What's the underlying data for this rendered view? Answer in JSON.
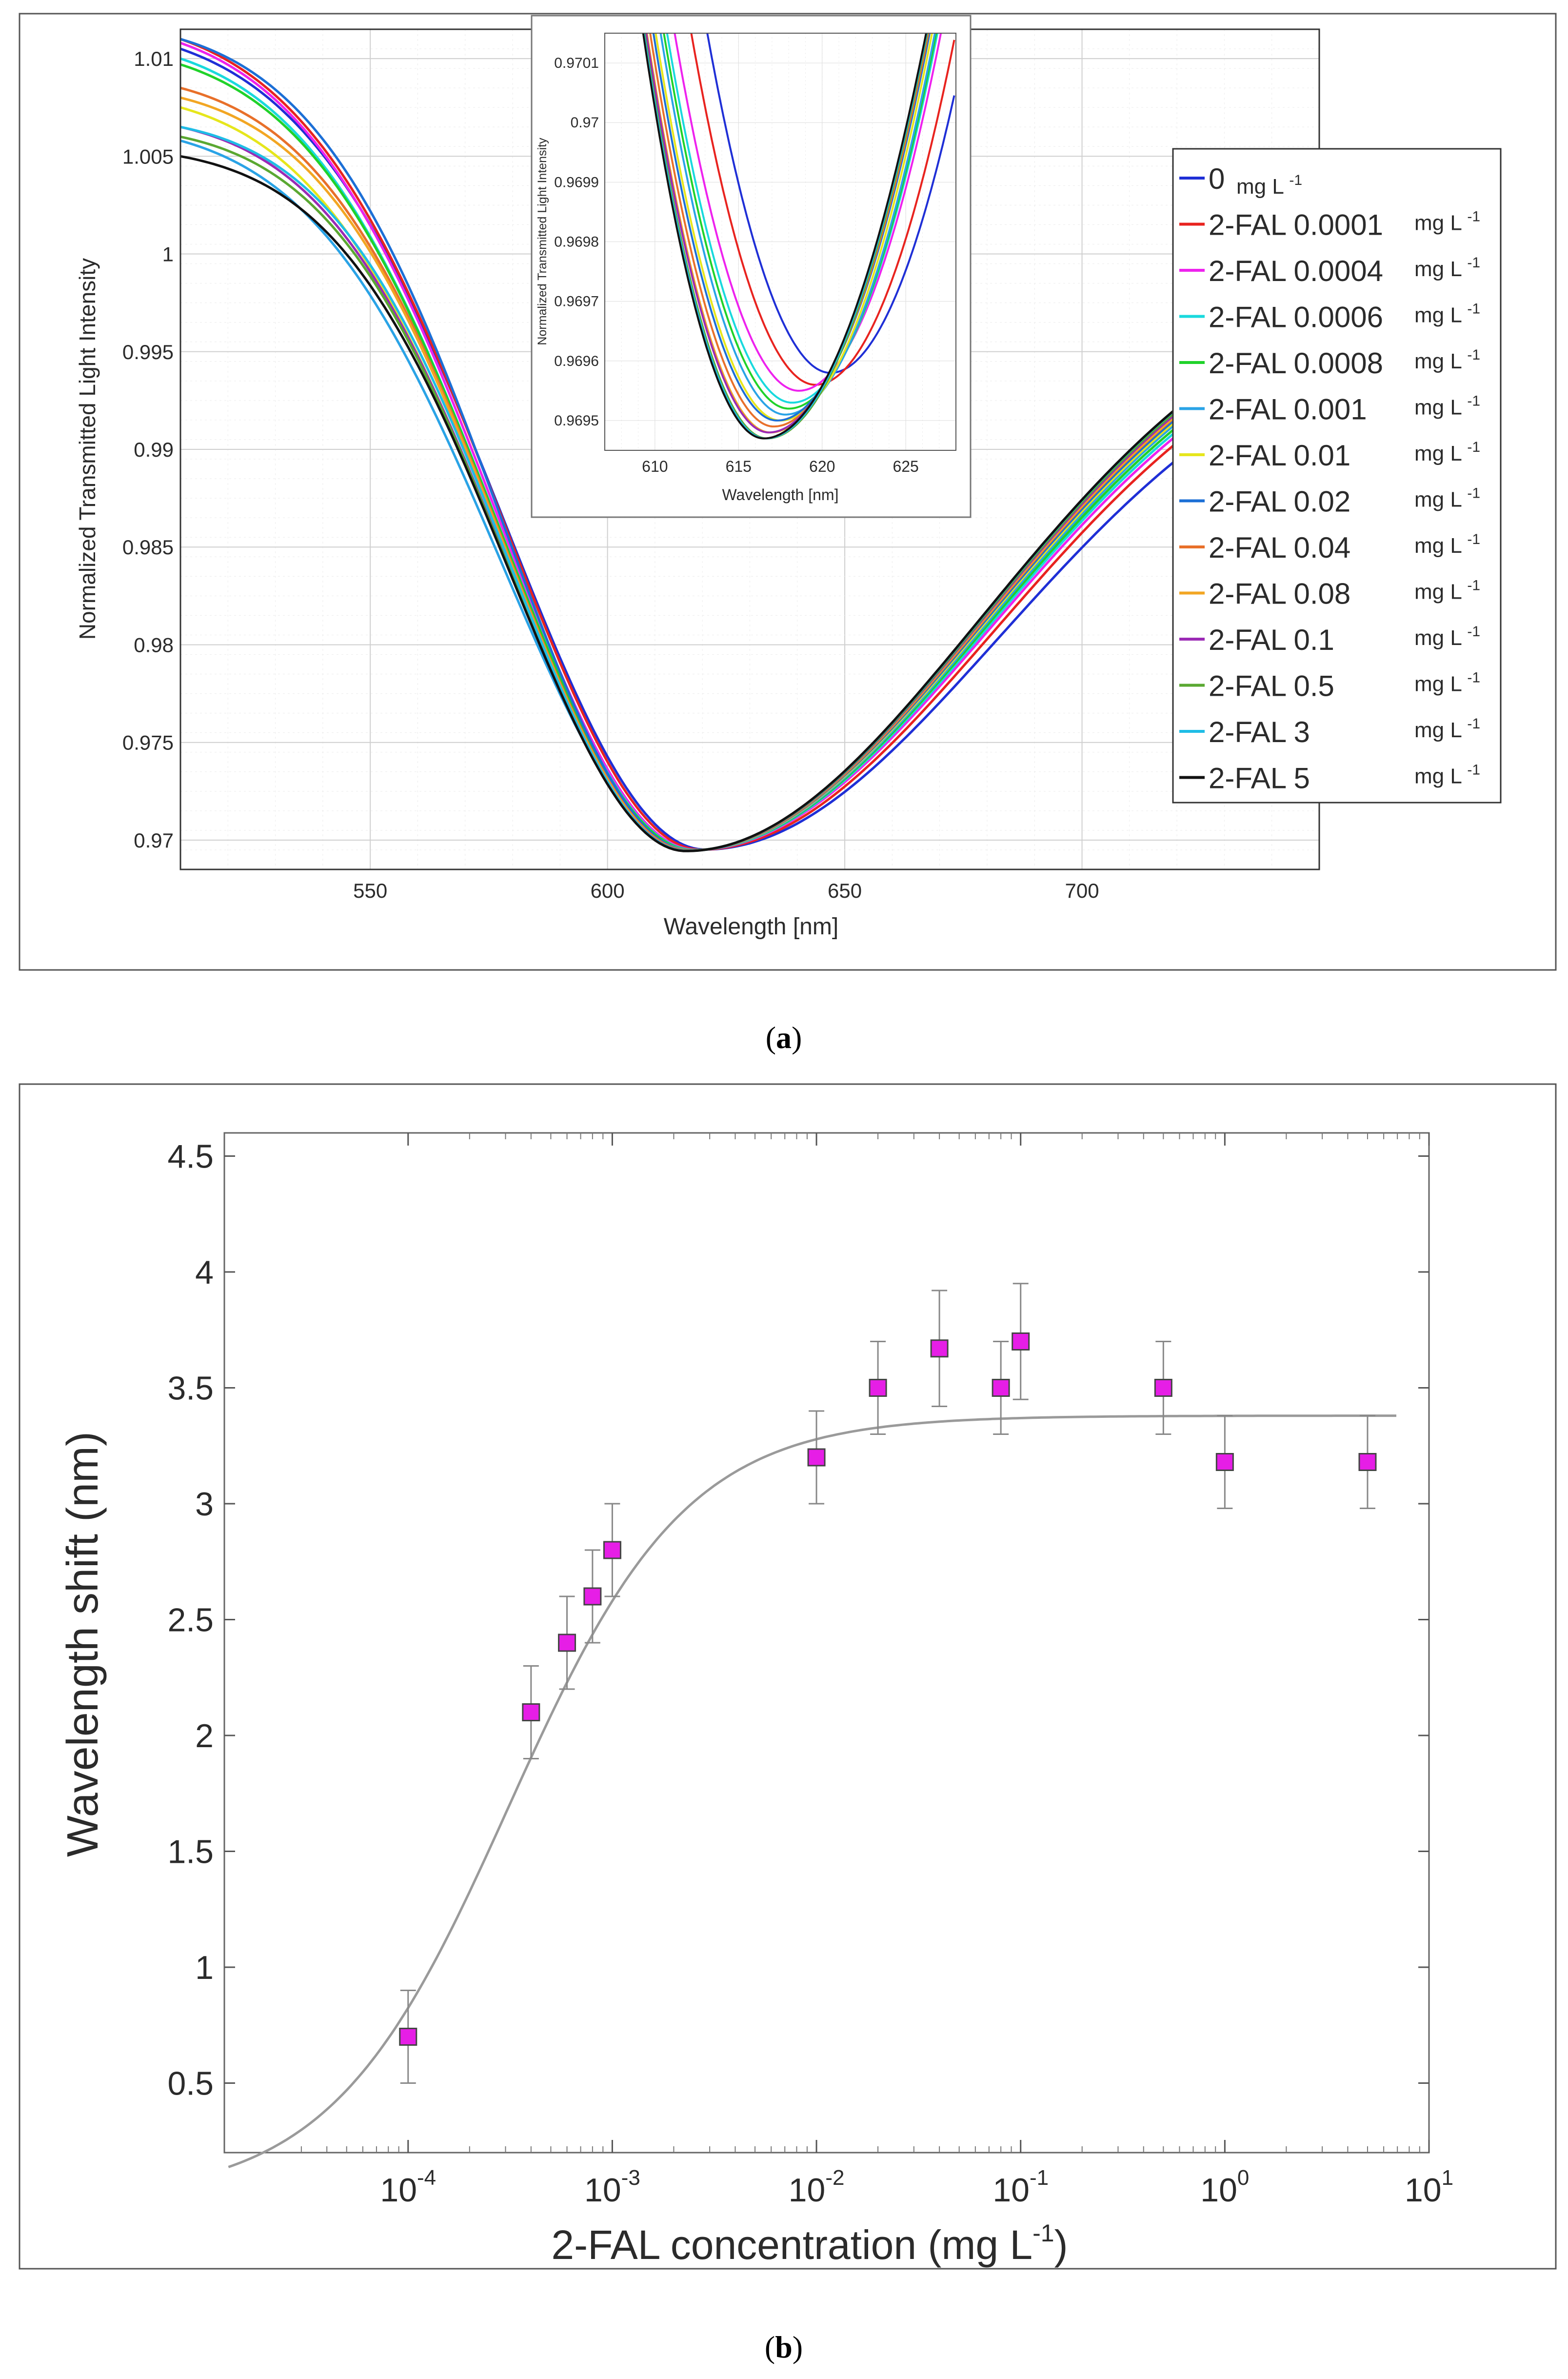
{
  "chart_data": [
    {
      "id": "a",
      "type": "line",
      "caption_label": "a",
      "xlabel": "Wavelength [nm]",
      "ylabel": "Normalized Transmitted Light Intensity",
      "xlim": [
        510,
        750
      ],
      "ylim": [
        0.9685,
        1.0115
      ],
      "xticks": [
        550,
        600,
        650,
        700
      ],
      "yticks": [
        0.97,
        0.975,
        0.98,
        0.985,
        0.99,
        0.995,
        1,
        1.005,
        1.01
      ],
      "yticklabels": [
        "0.97",
        "0.975",
        "0.98",
        "0.985",
        "0.99",
        "0.995",
        "1",
        "1.005",
        "1.01"
      ],
      "grid": true,
      "legend_position": "right",
      "legend_unit": "mg L",
      "legend_unit_sup": "-1",
      "series": [
        {
          "name": "0",
          "color": "#1f2fd6",
          "min_x": 620.5,
          "y_start": 1.0105,
          "y_end": 0.9936
        },
        {
          "name": "2-FAL 0.0001",
          "color": "#e8231f",
          "min_x": 619.6,
          "y_start": 1.011,
          "y_end": 0.9945
        },
        {
          "name": "2-FAL 0.0004",
          "color": "#ee22ee",
          "min_x": 618.6,
          "y_start": 1.0108,
          "y_end": 0.9948
        },
        {
          "name": "2-FAL 0.0006",
          "color": "#19d9dd",
          "min_x": 618.2,
          "y_start": 1.01,
          "y_end": 0.995
        },
        {
          "name": "2-FAL 0.0008",
          "color": "#20d22a",
          "min_x": 618.0,
          "y_start": 1.0097,
          "y_end": 0.9952
        },
        {
          "name": "2-FAL 0.001",
          "color": "#2aa3e6",
          "min_x": 617.8,
          "y_start": 1.0058,
          "y_end": 0.9954
        },
        {
          "name": "2-FAL 0.01",
          "color": "#e6e61c",
          "min_x": 617.5,
          "y_start": 1.0075,
          "y_end": 0.9955
        },
        {
          "name": "2-FAL 0.02",
          "color": "#1c6fd6",
          "min_x": 617.3,
          "y_start": 1.011,
          "y_end": 0.9956
        },
        {
          "name": "2-FAL 0.04",
          "color": "#e8702a",
          "min_x": 617.1,
          "y_start": 1.0085,
          "y_end": 0.9957
        },
        {
          "name": "2-FAL 0.08",
          "color": "#f2a623",
          "min_x": 616.9,
          "y_start": 1.008,
          "y_end": 0.9957
        },
        {
          "name": "2-FAL 0.1",
          "color": "#9b2ab5",
          "min_x": 616.8,
          "y_start": 1.0065,
          "y_end": 0.9958
        },
        {
          "name": "2-FAL 0.5",
          "color": "#5aa832",
          "min_x": 616.7,
          "y_start": 1.006,
          "y_end": 0.9959
        },
        {
          "name": "2-FAL 3",
          "color": "#1fbde6",
          "min_x": 616.6,
          "y_start": 1.0065,
          "y_end": 0.996
        },
        {
          "name": "2-FAL 5",
          "color": "#111111",
          "min_x": 616.5,
          "y_start": 1.005,
          "y_end": 0.996
        }
      ],
      "inset": {
        "xlabel": "Wavelength [nm]",
        "ylabel": "Normalized Transmitted Light Intensity",
        "xlim": [
          607,
          628
        ],
        "ylim": [
          0.96945,
          0.97015
        ],
        "xticks": [
          610,
          615,
          620,
          625
        ],
        "yticks": [
          0.9695,
          0.9696,
          0.9697,
          0.9698,
          0.9699,
          0.97,
          0.9701
        ],
        "yticklabels": [
          "0.9695",
          "0.9696",
          "0.9697",
          "0.9698",
          "0.9699",
          "0.97",
          "0.9701"
        ],
        "min_values": [
          0.96958,
          0.96956,
          0.96955,
          0.96953,
          0.96952,
          0.96951,
          0.9695,
          0.9695,
          0.96949,
          0.96948,
          0.96948,
          0.96947,
          0.96947,
          0.96947
        ]
      }
    },
    {
      "id": "b",
      "type": "scatter",
      "caption_label": "b",
      "xlabel": "2-FAL concentration (mg L",
      "xlabel_sup": "-1",
      "xlabel_close": ")",
      "ylabel": "Wavelength shift (nm)",
      "xscale": "log",
      "xlim_log10": [
        -4.9,
        1.0
      ],
      "ylim": [
        0.2,
        4.6
      ],
      "yticks": [
        0.5,
        1,
        1.5,
        2,
        2.5,
        3,
        3.5,
        4,
        4.5
      ],
      "yticklabels": [
        "0.5",
        "1",
        "1.5",
        "2",
        "2.5",
        "3",
        "3.5",
        "4",
        "4.5"
      ],
      "xticks_exp": [
        "-4",
        "-3",
        "-2",
        "-1",
        "0",
        "1"
      ],
      "xtick_base": "10",
      "grid": false,
      "marker_color": "#e61ee6",
      "fit_color": "#9a9a9a",
      "points": [
        {
          "x": 0.0001,
          "y": 0.7,
          "err": 0.2
        },
        {
          "x": 0.0004,
          "y": 2.1,
          "err": 0.2
        },
        {
          "x": 0.0006,
          "y": 2.4,
          "err": 0.2
        },
        {
          "x": 0.0008,
          "y": 2.6,
          "err": 0.2
        },
        {
          "x": 0.001,
          "y": 2.8,
          "err": 0.2
        },
        {
          "x": 0.01,
          "y": 3.2,
          "err": 0.2
        },
        {
          "x": 0.02,
          "y": 3.5,
          "err": 0.2
        },
        {
          "x": 0.04,
          "y": 3.67,
          "err": 0.25
        },
        {
          "x": 0.08,
          "y": 3.5,
          "err": 0.2
        },
        {
          "x": 0.1,
          "y": 3.7,
          "err": 0.25
        },
        {
          "x": 0.5,
          "y": 3.5,
          "err": 0.2
        },
        {
          "x": 1.0,
          "y": 3.18,
          "err": 0.2
        },
        {
          "x": 5.0,
          "y": 3.18,
          "err": 0.2
        }
      ],
      "fit": {
        "model": "langmuir",
        "bmax": 3.38,
        "kd": 0.00031
      }
    }
  ]
}
